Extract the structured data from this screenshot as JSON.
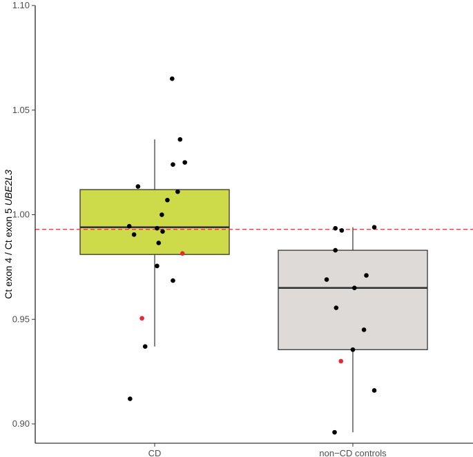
{
  "chart_data": {
    "type": "box",
    "title": "",
    "xlabel": "",
    "ylabel": {
      "plain": "Ct exon 4 / Ct exon 5 ",
      "italic": "UBE2L3"
    },
    "ylim": [
      0.893,
      1.1
    ],
    "yticks": [
      0.9,
      0.95,
      1.0,
      1.05,
      1.1
    ],
    "ytick_labels": [
      "0.90",
      "0.95",
      "1.00",
      "1.05",
      "1.10"
    ],
    "grid": false,
    "reference_line": {
      "y": 0.993,
      "color": "#e8292f",
      "style": "dashed"
    },
    "categories": [
      "CD",
      "non−CD controls"
    ],
    "boxes": [
      {
        "category": "CD",
        "fill": "#cddb4a",
        "whisker_low": 0.937,
        "q1": 0.981,
        "median": 0.994,
        "q3": 1.012,
        "whisker_high": 1.036,
        "points": [
          {
            "dx": 0.22,
            "y": 1.065,
            "color": "#000000"
          },
          {
            "dx": 0.32,
            "y": 1.036,
            "color": "#000000"
          },
          {
            "dx": 0.38,
            "y": 1.025,
            "color": "#000000"
          },
          {
            "dx": 0.23,
            "y": 1.024,
            "color": "#000000"
          },
          {
            "dx": -0.21,
            "y": 1.0135,
            "color": "#000000"
          },
          {
            "dx": 0.29,
            "y": 1.011,
            "color": "#000000"
          },
          {
            "dx": 0.16,
            "y": 1.007,
            "color": "#000000"
          },
          {
            "dx": 0.09,
            "y": 1.0,
            "color": "#000000"
          },
          {
            "dx": -0.32,
            "y": 0.9945,
            "color": "#000000"
          },
          {
            "dx": 0.03,
            "y": 0.9935,
            "color": "#000000"
          },
          {
            "dx": 0.1,
            "y": 0.992,
            "color": "#000000"
          },
          {
            "dx": -0.26,
            "y": 0.9905,
            "color": "#000000"
          },
          {
            "dx": 0.05,
            "y": 0.9865,
            "color": "#000000"
          },
          {
            "dx": 0.35,
            "y": 0.9815,
            "color": "#e8292f"
          },
          {
            "dx": 0.03,
            "y": 0.9755,
            "color": "#000000"
          },
          {
            "dx": 0.23,
            "y": 0.9685,
            "color": "#000000"
          },
          {
            "dx": -0.16,
            "y": 0.9505,
            "color": "#e8292f"
          },
          {
            "dx": -0.12,
            "y": 0.937,
            "color": "#000000"
          },
          {
            "dx": -0.31,
            "y": 0.912,
            "color": "#000000"
          }
        ]
      },
      {
        "category": "non−CD controls",
        "fill": "#dedad7",
        "whisker_low": 0.896,
        "q1": 0.9355,
        "median": 0.965,
        "q3": 0.983,
        "whisker_high": 0.994,
        "points": [
          {
            "dx": -0.22,
            "y": 0.9935,
            "color": "#000000"
          },
          {
            "dx": -0.14,
            "y": 0.9925,
            "color": "#000000"
          },
          {
            "dx": 0.27,
            "y": 0.994,
            "color": "#000000"
          },
          {
            "dx": -0.22,
            "y": 0.983,
            "color": "#000000"
          },
          {
            "dx": 0.17,
            "y": 0.971,
            "color": "#000000"
          },
          {
            "dx": -0.33,
            "y": 0.969,
            "color": "#000000"
          },
          {
            "dx": 0.02,
            "y": 0.965,
            "color": "#000000"
          },
          {
            "dx": -0.21,
            "y": 0.9555,
            "color": "#000000"
          },
          {
            "dx": 0.14,
            "y": 0.945,
            "color": "#000000"
          },
          {
            "dx": 0.0,
            "y": 0.9355,
            "color": "#000000"
          },
          {
            "dx": -0.15,
            "y": 0.93,
            "color": "#e8292f"
          },
          {
            "dx": 0.27,
            "y": 0.916,
            "color": "#000000"
          },
          {
            "dx": -0.23,
            "y": 0.896,
            "color": "#000000"
          }
        ]
      }
    ]
  }
}
